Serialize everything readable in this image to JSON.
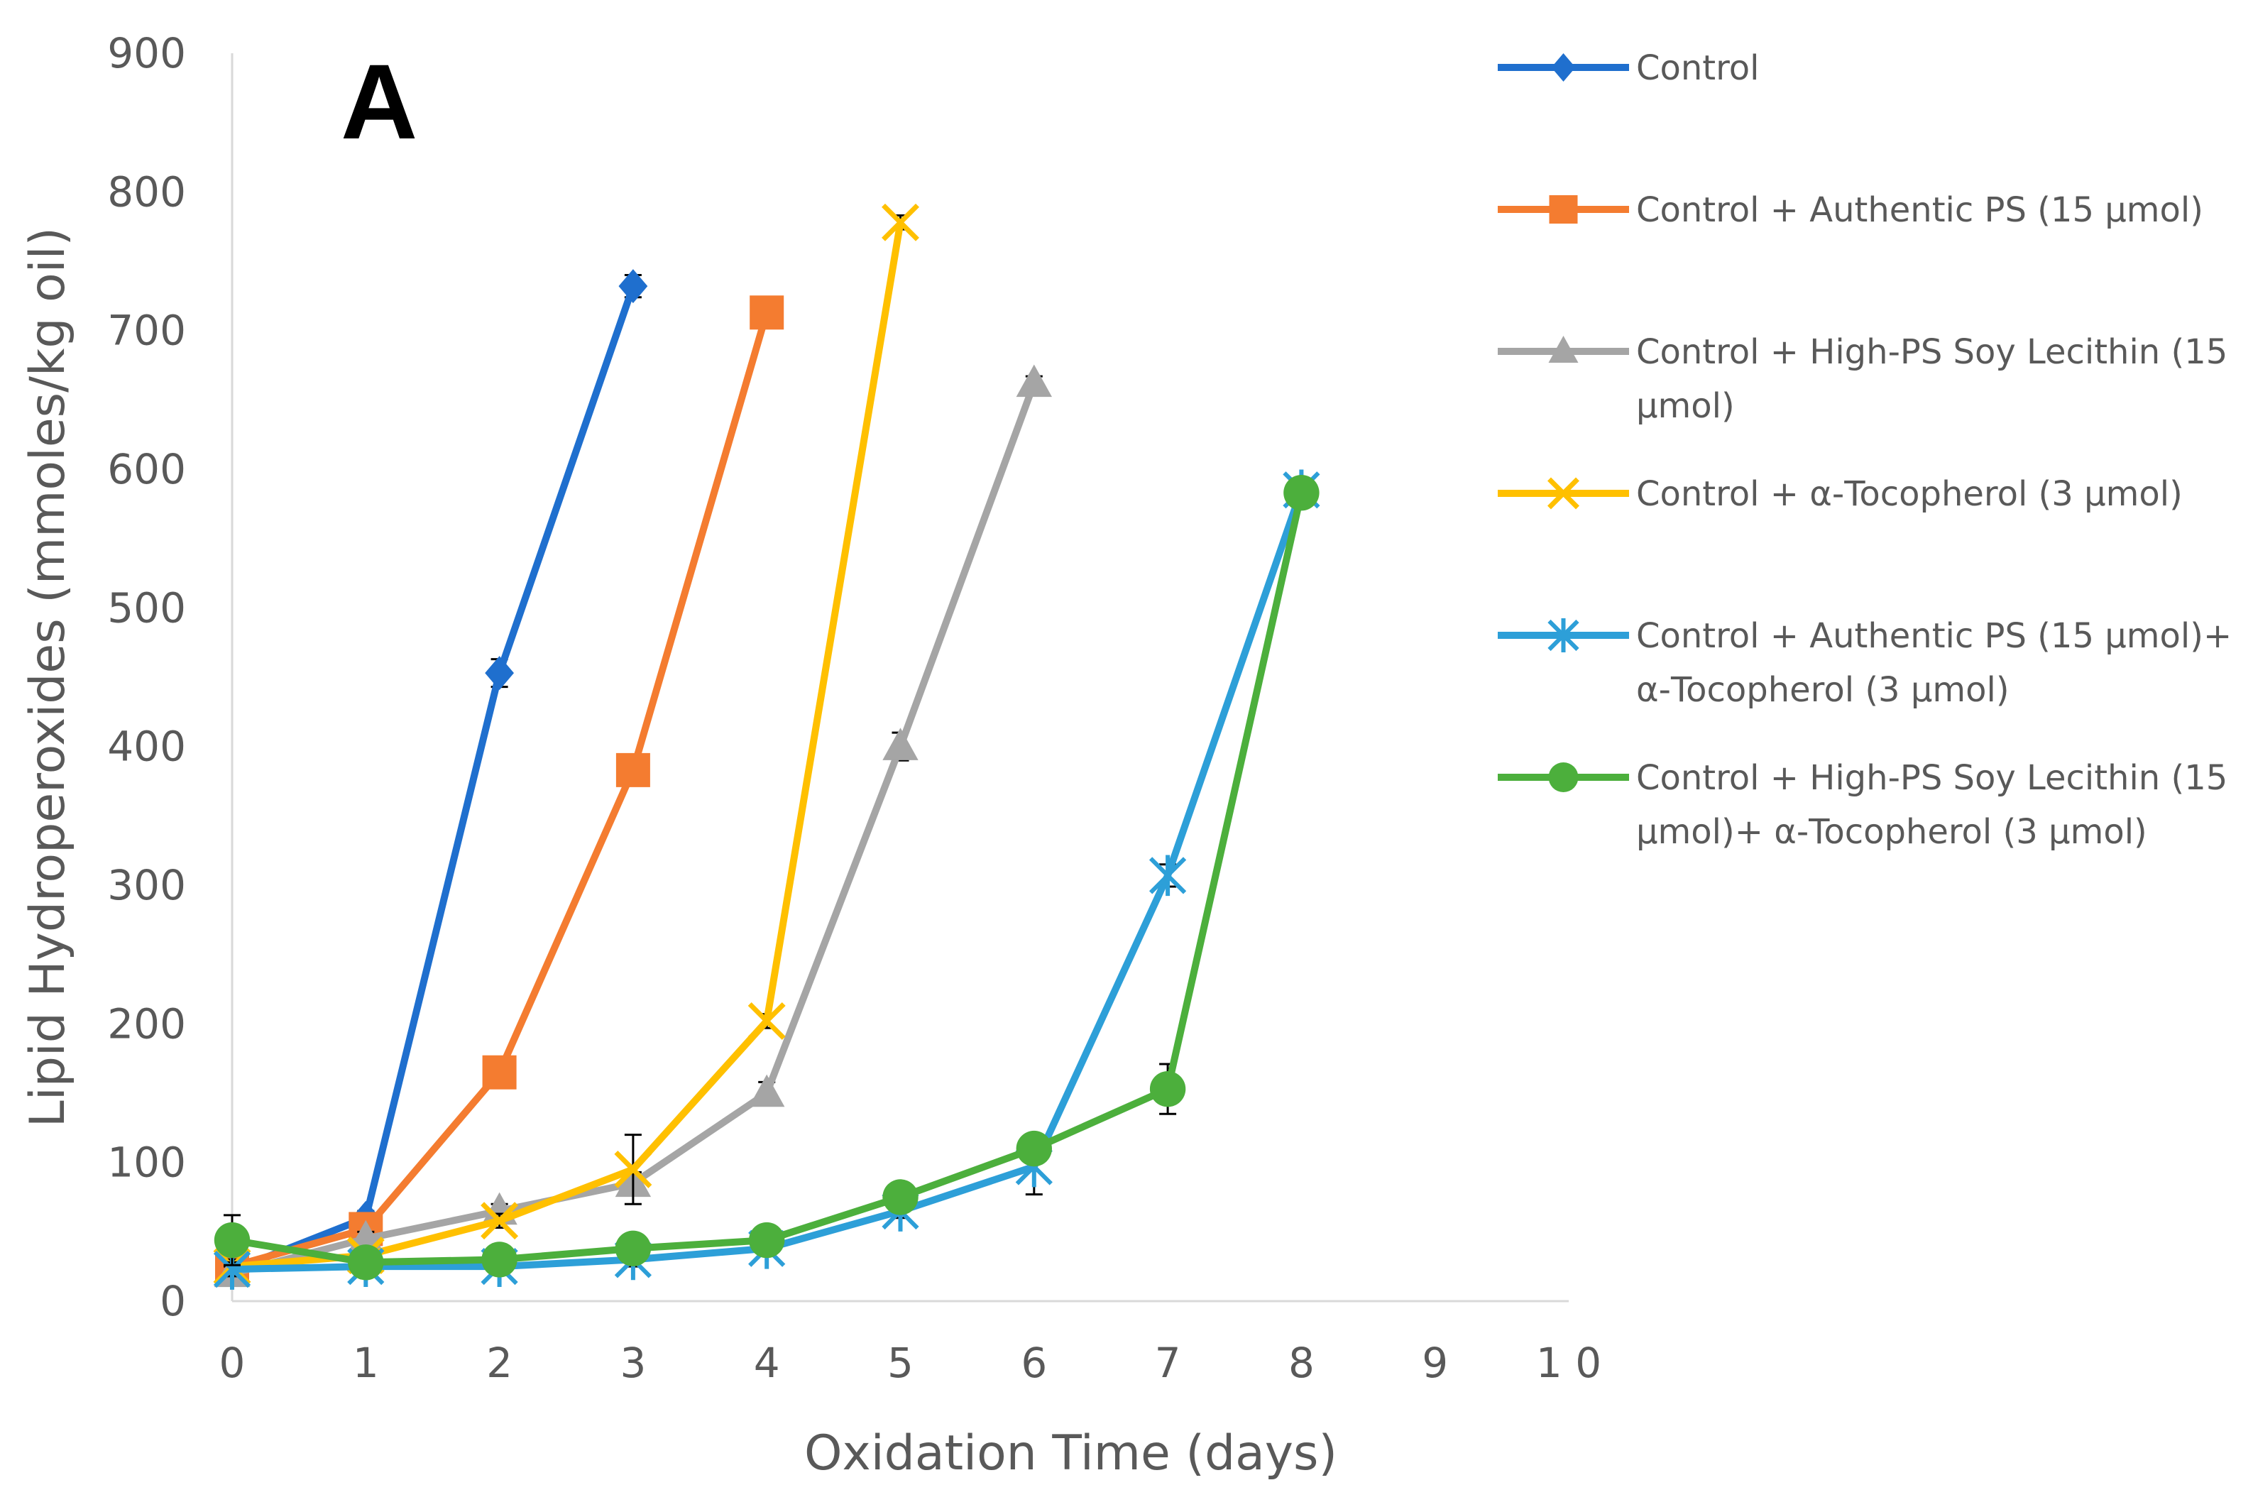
{
  "chart_data": {
    "type": "line",
    "panel_label": "A",
    "title": "",
    "xlabel": "Oxidation Time (days)",
    "ylabel": "Lipid Hydroperoxides (mmoles/kg oil)",
    "xlim": [
      0,
      10
    ],
    "ylim": [
      0,
      900
    ],
    "x_ticks": [
      "0",
      "1",
      "2",
      "3",
      "4",
      "5",
      "6",
      "7",
      "8",
      "9",
      "1 0"
    ],
    "y_ticks": [
      "0",
      "100",
      "200",
      "300",
      "400",
      "500",
      "600",
      "700",
      "800",
      "900"
    ],
    "grid": false,
    "legend_position": "right",
    "series": [
      {
        "name": "Control",
        "legend_lines": [
          "Control"
        ],
        "color": "#1f6fce",
        "marker": "diamond",
        "x": [
          0,
          1,
          2,
          3
        ],
        "values": [
          22,
          60,
          453,
          732
        ],
        "errors": [
          5,
          5,
          10,
          8
        ]
      },
      {
        "name": "Control + Authentic PS (15 µmol)",
        "legend_lines": [
          "Control + Authentic PS (15 µmol)"
        ],
        "color": "#f47c30",
        "marker": "square",
        "x": [
          0,
          1,
          2,
          3,
          4
        ],
        "values": [
          25,
          52,
          165,
          383,
          713
        ],
        "errors": [
          5,
          5,
          8,
          8,
          8
        ]
      },
      {
        "name": "Control + High-PS Soy Lecithin (15 µmol)",
        "legend_lines": [
          "Control + High-PS Soy Lecithin (15",
          "µmol)"
        ],
        "color": "#a5a5a5",
        "marker": "triangle",
        "x": [
          0,
          1,
          2,
          3,
          4,
          5,
          6
        ],
        "values": [
          20,
          45,
          65,
          85,
          150,
          400,
          662
        ],
        "errors": [
          5,
          5,
          5,
          8,
          8,
          10,
          5
        ]
      },
      {
        "name": "Control + α-Tocopherol (3 µmol)",
        "legend_lines": [
          "Control + α-Tocopherol (3 µmol)"
        ],
        "color": "#ffc000",
        "marker": "x",
        "x": [
          0,
          1,
          2,
          3,
          4,
          5
        ],
        "values": [
          25,
          33,
          58,
          95,
          202,
          778
        ],
        "errors": [
          5,
          5,
          5,
          25,
          5,
          5
        ]
      },
      {
        "name": "Control + Authentic PS (15 µmol)+ α-Tocopherol (3 µmol)",
        "legend_lines": [
          "Control + Authentic PS (15 µmol)+",
          "α-Tocopherol (3 µmol)"
        ],
        "color": "#2d9fd8",
        "marker": "star",
        "x": [
          0,
          1,
          2,
          3,
          4,
          5,
          6,
          7,
          8
        ],
        "values": [
          23,
          25,
          25,
          30,
          38,
          65,
          97,
          307,
          585
        ],
        "errors": [
          5,
          5,
          5,
          5,
          5,
          5,
          20,
          8,
          8
        ]
      },
      {
        "name": "Control + High-PS Soy Lecithin (15 µmol)+ α-Tocopherol (3 µmol)",
        "legend_lines": [
          "Control + High-PS Soy Lecithin (15",
          "µmol)+ α-Tocopherol (3 µmol)"
        ],
        "color": "#4caf3c",
        "marker": "circle",
        "x": [
          0,
          1,
          2,
          3,
          4,
          5,
          6,
          7,
          8
        ],
        "values": [
          44,
          28,
          30,
          38,
          44,
          75,
          110,
          153,
          583
        ],
        "errors": [
          18,
          5,
          5,
          5,
          5,
          5,
          10,
          18,
          5
        ]
      }
    ]
  }
}
